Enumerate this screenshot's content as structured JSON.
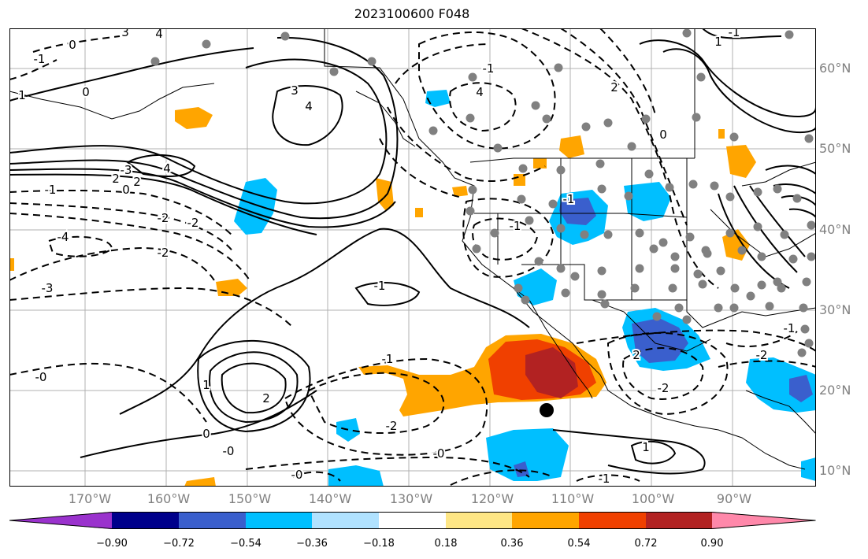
{
  "title": "2023100600 F048",
  "map": {
    "lat_labels": [
      "60°N",
      "50°N",
      "40°N",
      "30°N",
      "20°N",
      "10°N"
    ],
    "lon_labels": [
      "170°W",
      "160°W",
      "150°W",
      "140°W",
      "130°W",
      "120°W",
      "110°W",
      "100°W",
      "90°W"
    ],
    "contour_labels": [
      "-1",
      "0",
      "0",
      "3",
      "4",
      "3",
      "4",
      "1",
      "2",
      "-3",
      "4",
      "2",
      "-1",
      "-2",
      "0",
      "-2",
      "-4",
      "-3",
      "-1",
      "-1",
      "1",
      "2",
      "0",
      "-2",
      "-2",
      "-0",
      "-0",
      "-0",
      "1",
      "-1",
      "2",
      "-2",
      "-2",
      "-1",
      "-1",
      "-1",
      "2",
      "0",
      "-1",
      "-0",
      "-1",
      "1"
    ],
    "colors": {
      "contour": "#000000",
      "coast": "#000000",
      "grid": "#b0b0b0",
      "station": "#808080"
    }
  },
  "colorbar": {
    "levels": [
      "−0.90",
      "−0.72",
      "−0.54",
      "−0.36",
      "−0.18",
      "0.18",
      "0.36",
      "0.54",
      "0.72",
      "0.90"
    ],
    "colors": [
      "#9a32cd",
      "#00008b",
      "#3a5fcd",
      "#00bfff",
      "#b0e2ff",
      "#ffffff",
      "#fee685",
      "#ffa500",
      "#f04000",
      "#b22222",
      "#ff88aa"
    ]
  }
}
